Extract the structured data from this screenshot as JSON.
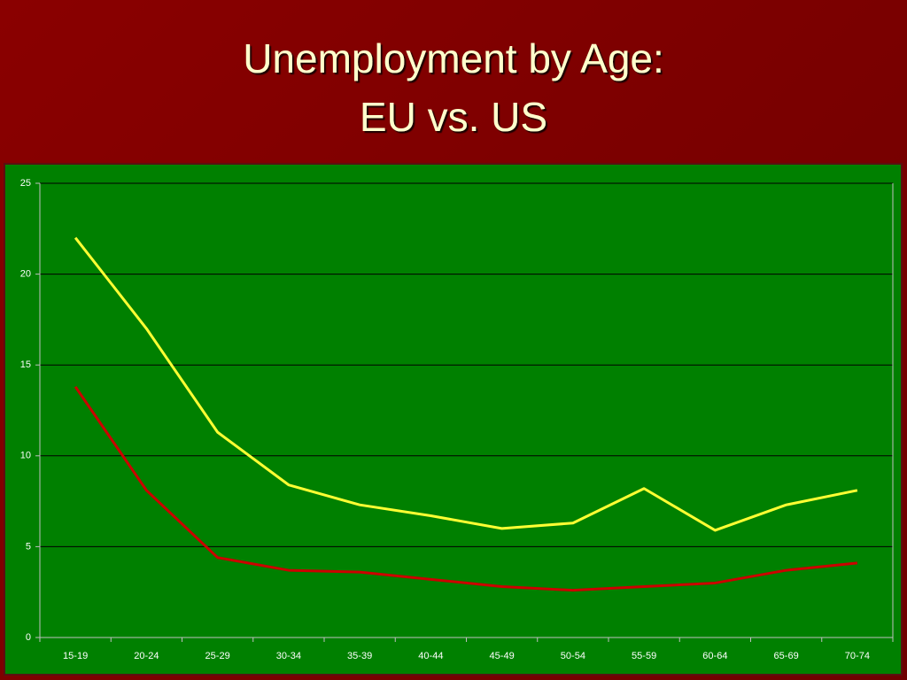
{
  "chart_data": {
    "type": "line",
    "title": [
      "Unemployment by Age:",
      "EU vs. US"
    ],
    "categories": [
      "15-19",
      "20-24",
      "25-29",
      "30-34",
      "35-39",
      "40-44",
      "45-49",
      "50-54",
      "55-59",
      "60-64",
      "65-69",
      "70-74"
    ],
    "series": [
      {
        "color": "#ffff33",
        "values": [
          22.0,
          17.0,
          11.3,
          8.4,
          7.3,
          6.7,
          6.0,
          6.3,
          8.2,
          5.9,
          7.3,
          8.1
        ]
      },
      {
        "color": "#cc0000",
        "values": [
          13.8,
          8.1,
          4.4,
          3.7,
          3.6,
          3.2,
          2.8,
          2.6,
          2.8,
          3.0,
          3.7,
          4.1
        ]
      }
    ],
    "ylim": [
      0,
      25
    ],
    "yticks": [
      0,
      5,
      10,
      15,
      20,
      25
    ],
    "grid": true
  }
}
